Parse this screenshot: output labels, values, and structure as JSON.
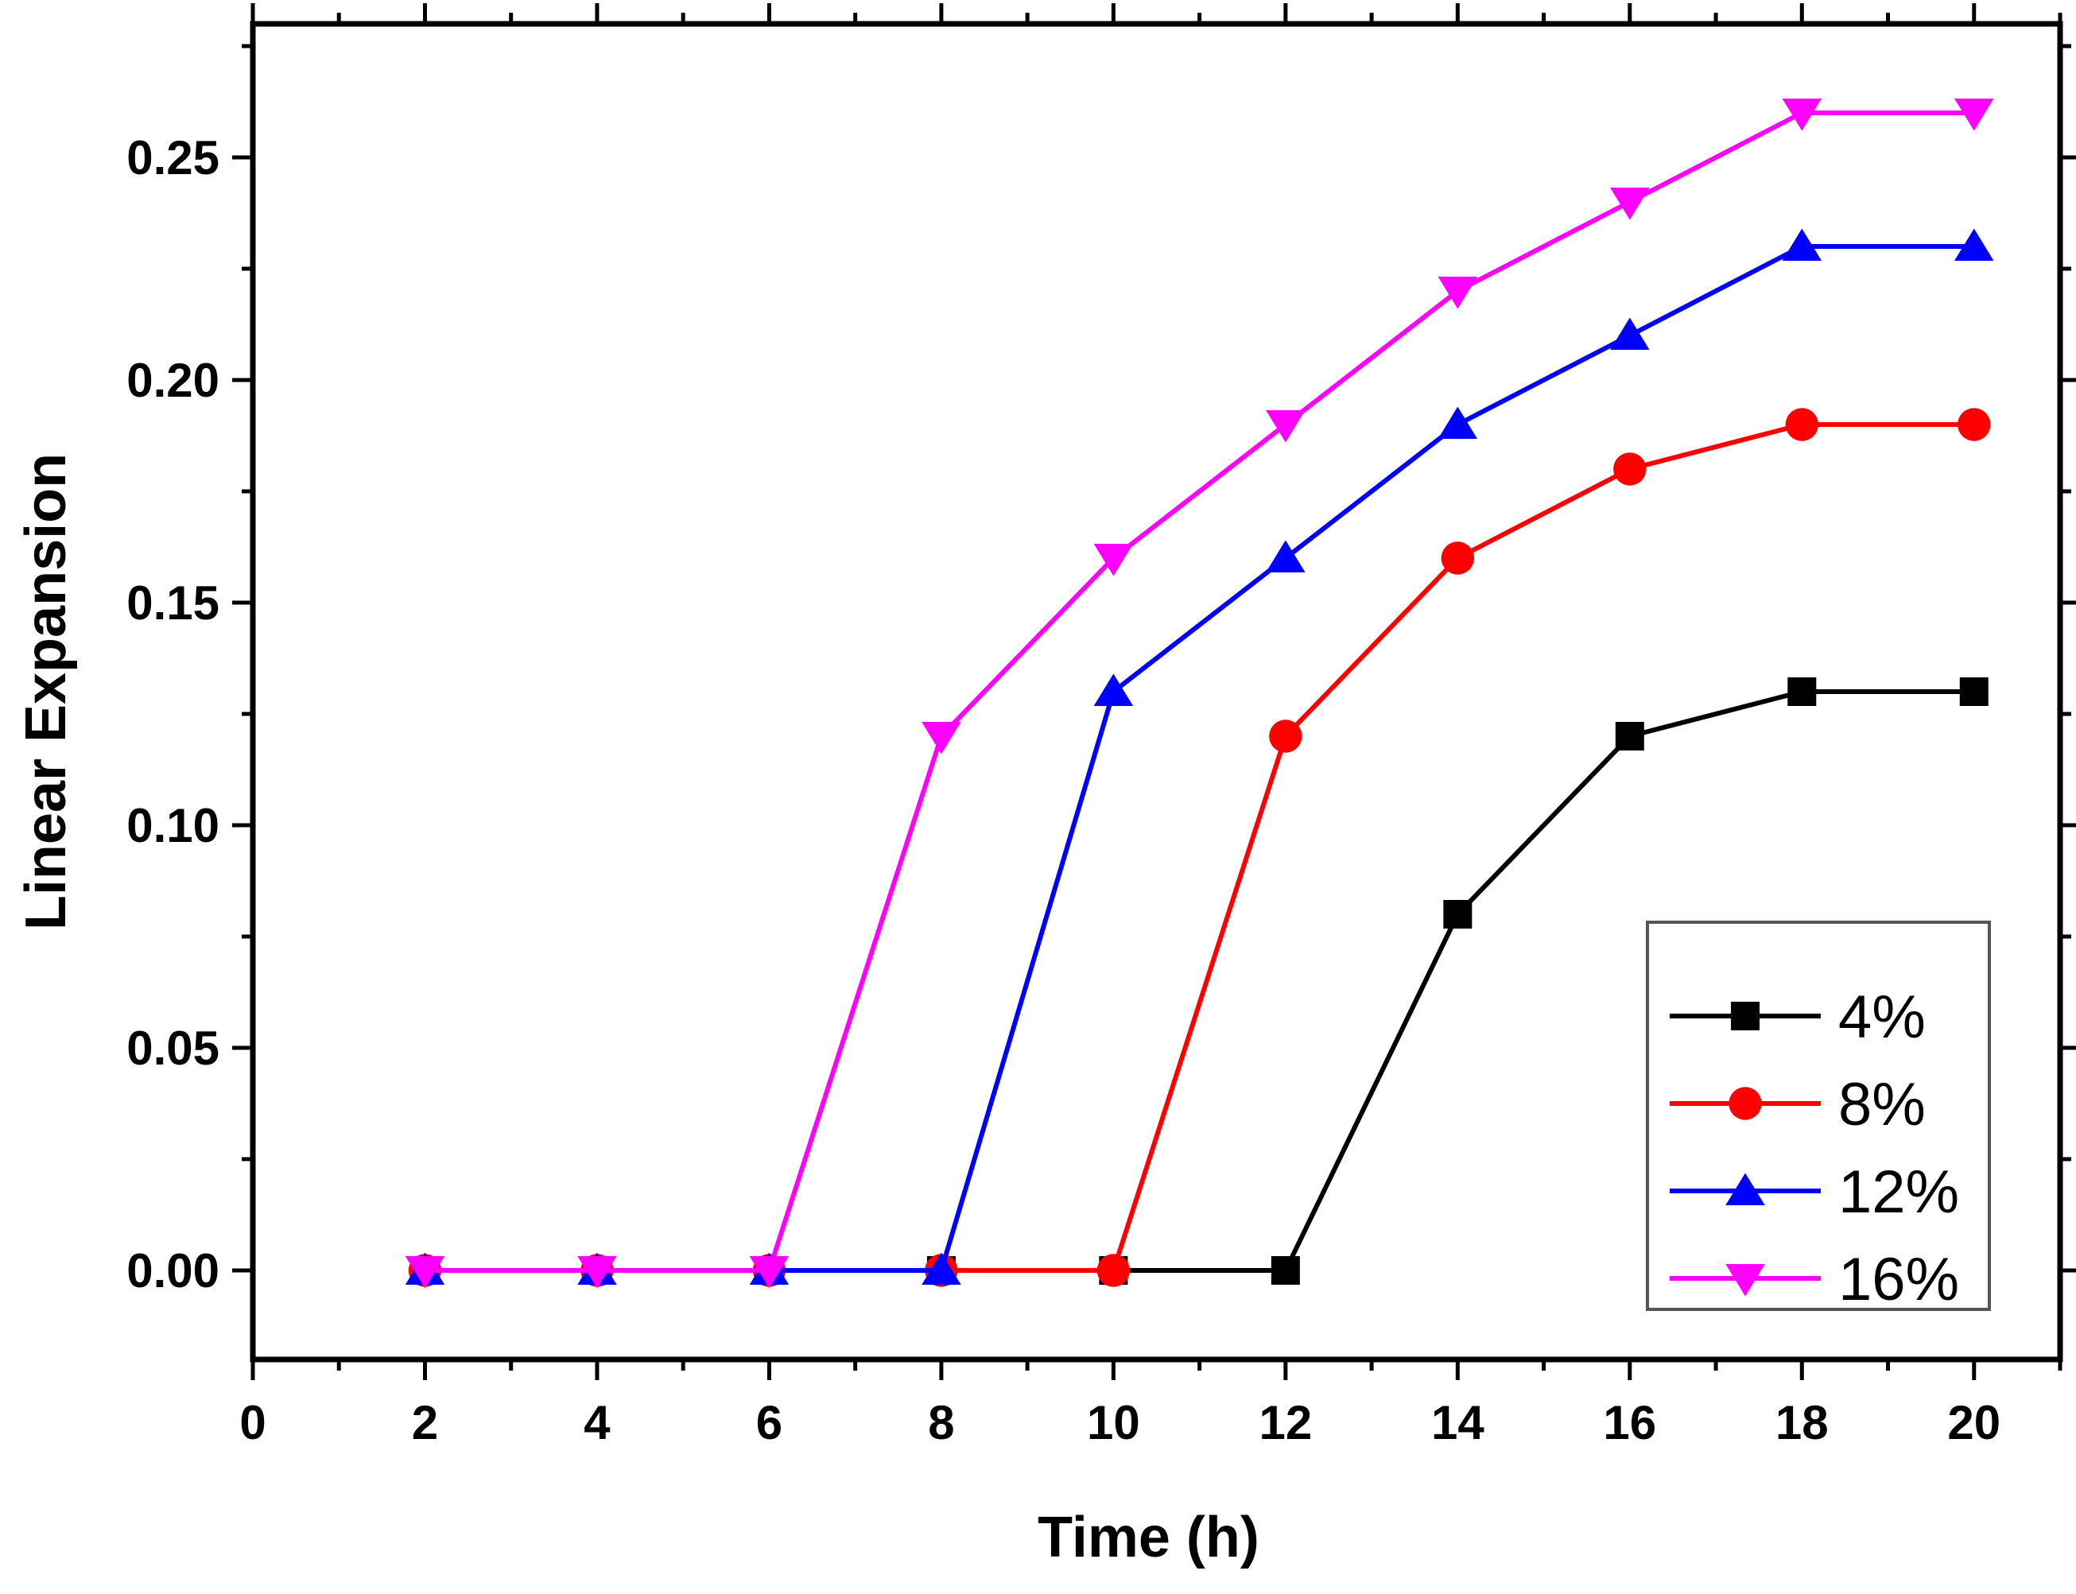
{
  "chart_data": {
    "type": "line",
    "title": "",
    "xlabel": "Time (h)",
    "ylabel": "Linear Expansion",
    "xlim": [
      0,
      21
    ],
    "ylim": [
      -0.02,
      0.28
    ],
    "xticks": [
      0,
      2,
      4,
      6,
      8,
      10,
      12,
      14,
      16,
      18,
      20
    ],
    "xtick_labels": [
      "0",
      "2",
      "4",
      "6",
      "8",
      "10",
      "12",
      "14",
      "16",
      "18",
      "20"
    ],
    "yticks": [
      0.0,
      0.05,
      0.1,
      0.15,
      0.2,
      0.25
    ],
    "ytick_labels": [
      "0.00",
      "0.05",
      "0.10",
      "0.15",
      "0.20",
      "0.25"
    ],
    "grid": false,
    "legend_position": "bottom-right",
    "x": [
      2,
      4,
      6,
      8,
      10,
      12,
      14,
      16,
      18,
      20
    ],
    "series": [
      {
        "name": "4%",
        "color": "#000000",
        "marker": "square",
        "values": [
          0,
          0,
          0,
          0,
          0,
          0,
          0.08,
          0.12,
          0.13,
          0.13
        ]
      },
      {
        "name": "8%",
        "color": "#ff0000",
        "marker": "circle",
        "values": [
          0,
          0,
          0,
          0,
          0,
          0.12,
          0.16,
          0.18,
          0.19,
          0.19
        ]
      },
      {
        "name": "12%",
        "color": "#0000ff",
        "marker": "triangle-up",
        "values": [
          0,
          0,
          0,
          0,
          0.13,
          0.16,
          0.19,
          0.21,
          0.23,
          0.23
        ]
      },
      {
        "name": "16%",
        "color": "#ff00ff",
        "marker": "triangle-down",
        "values": [
          0,
          0,
          0,
          0.12,
          0.16,
          0.19,
          0.22,
          0.24,
          0.26,
          0.26
        ]
      }
    ]
  }
}
